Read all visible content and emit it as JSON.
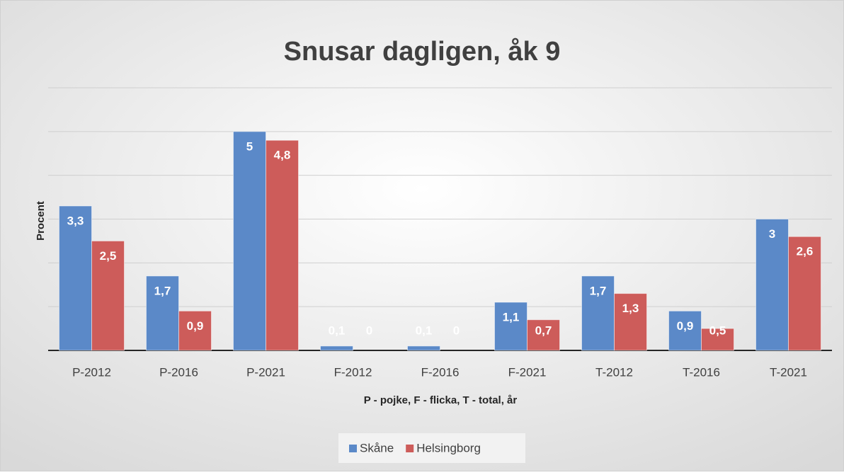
{
  "chart_data": {
    "type": "bar",
    "title": "Snusar dagligen, åk 9",
    "y_label": "Procent",
    "x_label": "P - pojke, F - flicka, T - total, år",
    "categories": [
      "P-2012",
      "P-2016",
      "P-2021",
      "F-2012",
      "F-2016",
      "F-2021",
      "T-2012",
      "T-2016",
      "T-2021"
    ],
    "series": [
      {
        "name": "Skåne",
        "color": "#5b89c8",
        "values": [
          3.3,
          1.7,
          5,
          0.1,
          0.1,
          1.1,
          1.7,
          0.9,
          3
        ],
        "value_labels": [
          "3,3",
          "1,7",
          "5",
          "0,1",
          "0,1",
          "1,1",
          "1,7",
          "0,9",
          "3"
        ]
      },
      {
        "name": "Helsingborg",
        "color": "#cd5c5a",
        "values": [
          2.5,
          0.9,
          4.8,
          0,
          0,
          0.7,
          1.3,
          0.5,
          2.6
        ],
        "value_labels": [
          "2,5",
          "0,9",
          "4,8",
          "0",
          "0",
          "0,7",
          "1,3",
          "0,5",
          "2,6"
        ]
      }
    ],
    "ylim": [
      0,
      6
    ],
    "yticks": [
      0,
      1,
      2,
      3,
      4,
      5,
      6
    ],
    "grid": true,
    "legend": "bottom"
  }
}
